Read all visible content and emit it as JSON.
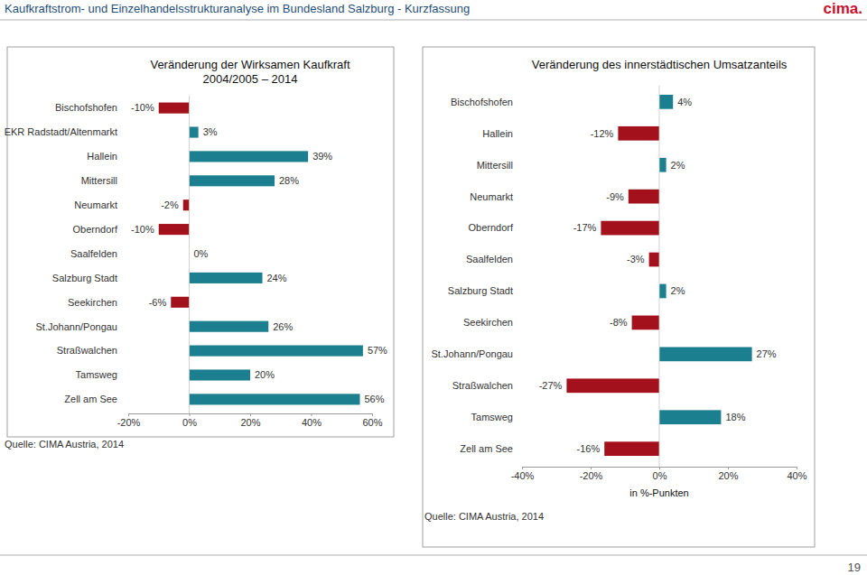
{
  "page": {
    "header": "Kaufkraftstrom- und Einzelhandelsstrukturanalyse im Bundesland Salzburg - Kurzfassung",
    "logo": "cima.",
    "number": 19
  },
  "chart_data": [
    {
      "type": "bar",
      "orientation": "horizontal",
      "title": "Veränderung der Wirksamen Kaufkraft",
      "subtitle": "2004/2005 – 2014",
      "source": "Quelle: CIMA Austria, 2014",
      "categories": [
        "Bischofshofen",
        "EKR Radstadt/Altenmarkt",
        "Hallein",
        "Mittersill",
        "Neumarkt",
        "Oberndorf",
        "Saalfelden",
        "Salzburg Stadt",
        "Seekirchen",
        "St.Johann/Pongau",
        "Straßwalchen",
        "Tamsweg",
        "Zell am See"
      ],
      "values": [
        -10,
        3,
        39,
        28,
        -2,
        -10,
        0,
        24,
        -6,
        26,
        57,
        20,
        56
      ],
      "value_labels": [
        "-10%",
        "3%",
        "39%",
        "28%",
        "-2%",
        "-10%",
        "0%",
        "24%",
        "-6%",
        "26%",
        "57%",
        "20%",
        "56%"
      ],
      "colors": [
        "#a3121c",
        "#1b7f8f",
        "#1b7f8f",
        "#1b7f8f",
        "#a3121c",
        "#a3121c",
        "#1b7f8f",
        "#1b7f8f",
        "#a3121c",
        "#1b7f8f",
        "#1b7f8f",
        "#1b7f8f",
        "#1b7f8f"
      ],
      "data_labels": true,
      "grid": false,
      "xlim": [
        -20,
        60
      ],
      "xticks": [
        {
          "value": -20,
          "label": "-20%"
        },
        {
          "value": 0,
          "label": "0%"
        },
        {
          "value": 20,
          "label": "20%"
        },
        {
          "value": 40,
          "label": "40%"
        },
        {
          "value": 60,
          "label": "60%"
        }
      ]
    },
    {
      "type": "bar",
      "orientation": "horizontal",
      "title": "Veränderung des innerstädtischen Umsatzanteils",
      "source": "Quelle: CIMA Austria, 2014",
      "x_label": "in %-Punkten",
      "categories": [
        "Bischofshofen",
        "Hallein",
        "Mittersill",
        "Neumarkt",
        "Oberndorf",
        "Saalfelden",
        "Salzburg Stadt",
        "Seekirchen",
        "St.Johann/Pongau",
        "Straßwalchen",
        "Tamsweg",
        "Zell am See"
      ],
      "values": [
        4,
        -12,
        2,
        -9,
        -17,
        -3,
        2,
        -8,
        27,
        -27,
        18,
        -16
      ],
      "value_labels": [
        "4%",
        "-12%",
        "2%",
        "-9%",
        "-17%",
        "-3%",
        "2%",
        "-8%",
        "27%",
        "-27%",
        "18%",
        "-16%"
      ],
      "colors": [
        "#1b7f8f",
        "#a3121c",
        "#1b7f8f",
        "#a3121c",
        "#a3121c",
        "#a3121c",
        "#1b7f8f",
        "#a3121c",
        "#1b7f8f",
        "#a3121c",
        "#1b7f8f",
        "#a3121c"
      ],
      "data_labels": true,
      "grid": false,
      "xlim": [
        -40,
        40
      ],
      "xticks": [
        {
          "value": -40,
          "label": "-40%"
        },
        {
          "value": -20,
          "label": "-20%"
        },
        {
          "value": 0,
          "label": "0%"
        },
        {
          "value": 20,
          "label": "20%"
        },
        {
          "value": 40,
          "label": "40%"
        }
      ]
    }
  ]
}
